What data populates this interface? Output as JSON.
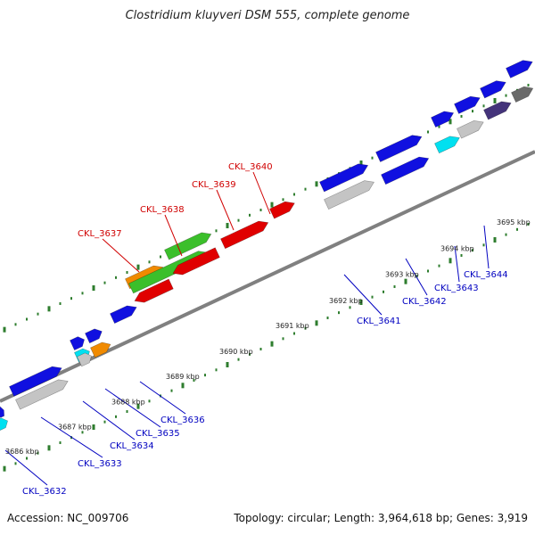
{
  "title": "Clostridium kluyveri DSM 555, complete genome",
  "footer": {
    "accession": "Accession: NC_009706",
    "summary": "Topology: circular; Length: 3,964,618 bp; Genes: 3,919"
  },
  "colors": {
    "backbone": "#808080",
    "tick": "#2e7d2e",
    "gene_blue": "#1010e0",
    "gene_red": "#e00000",
    "gene_green": "#3bbf2b",
    "gene_orange": "#f08a00",
    "gene_grey": "#c4c4c4",
    "gene_cyan": "#00e0f0",
    "gene_purple": "#44337a",
    "gene_darkgrey": "#6a6a6a",
    "label_red": "#d00000",
    "label_blue": "#0000c0"
  },
  "scale_labels": [
    "3686 kbp",
    "3687 kbp",
    "3688 kbp",
    "3689 kbp",
    "3690 kbp",
    "3691 kbp",
    "3692 kbp",
    "3693 kbp",
    "3694 kbp",
    "3695 kbp"
  ],
  "gene_labels_outer": [
    "CKL_3637",
    "CKL_3638",
    "CKL_3639",
    "CKL_3640"
  ],
  "gene_labels_inner": [
    "CKL_3632",
    "CKL_3633",
    "CKL_3634",
    "CKL_3635",
    "CKL_3636",
    "CKL_3641",
    "CKL_3642",
    "CKL_3643",
    "CKL_3644"
  ]
}
